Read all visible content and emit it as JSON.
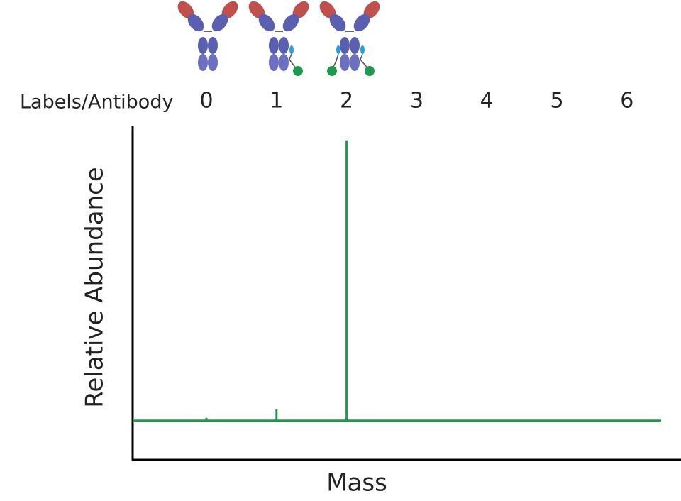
{
  "chart_data": {
    "type": "bar",
    "x_label": "Labels/Antibody",
    "y_label": "Relative Abundance",
    "x_axis_title": "Mass",
    "categories": [
      "0",
      "1",
      "2",
      "3",
      "4",
      "5",
      "6"
    ],
    "values": [
      1,
      4,
      100,
      0,
      0,
      0,
      0
    ],
    "color": "#1e9a4e",
    "ylim": [
      -14,
      105
    ]
  }
}
